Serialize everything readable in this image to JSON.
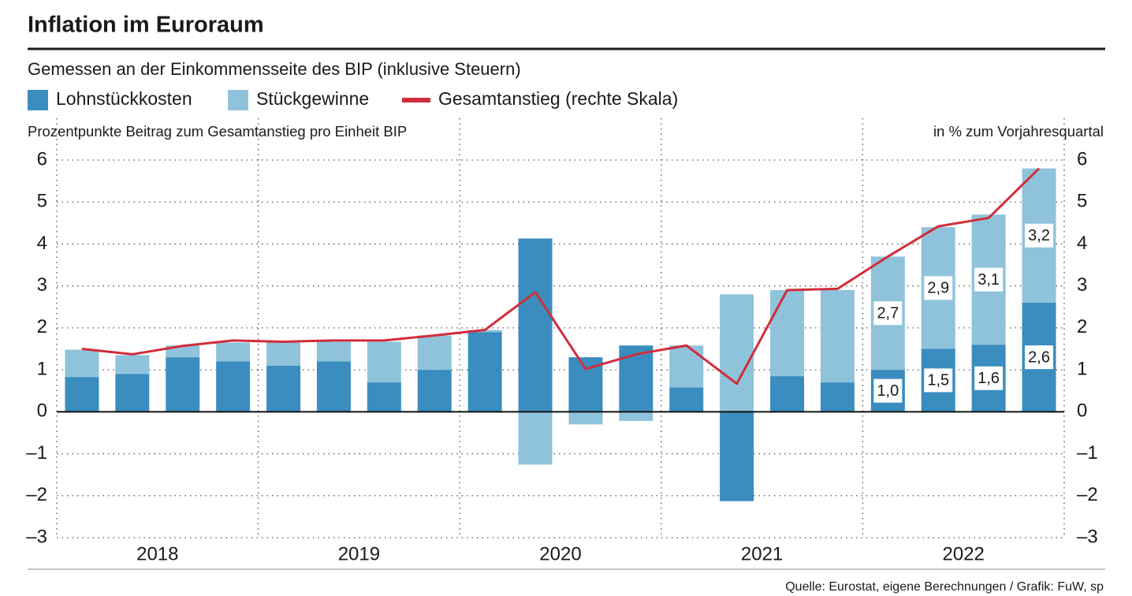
{
  "chart_data": {
    "type": "bar",
    "stacked": true,
    "title": "Inflation im Euroraum",
    "subtitle": "Gemessen an der Einkommensseite des BIP (inklusive Steuern)",
    "y_label": "Prozentpunkte Beitrag zum Gesamtanstieg pro Einheit BIP",
    "y2_label": "in % zum Vorjahresquartal",
    "source": "Quelle: Eurostat, eigene Berechnungen / Grafik: FuW, sp",
    "categories": [
      null,
      null,
      null,
      null,
      null,
      null,
      null,
      null,
      null,
      null,
      null,
      null,
      null,
      null,
      null,
      null,
      null,
      null,
      null,
      null
    ],
    "x_groups": [
      "2018",
      "2019",
      "2020",
      "2021",
      "2022"
    ],
    "series": [
      {
        "name": "Lohnstückkosten",
        "color": "#3b8dbf",
        "values": [
          0.83,
          0.9,
          1.3,
          1.2,
          1.1,
          1.2,
          0.7,
          1.0,
          1.9,
          4.13,
          1.3,
          1.58,
          0.58,
          -2.13,
          0.85,
          0.7,
          1.0,
          1.5,
          1.6,
          2.6
        ],
        "value_labels": [
          null,
          null,
          null,
          null,
          null,
          null,
          null,
          null,
          null,
          null,
          null,
          null,
          null,
          null,
          null,
          null,
          "1,0",
          "1,5",
          "1,6",
          "2,6"
        ]
      },
      {
        "name": "Stückgewinne",
        "color": "#8fc3dc",
        "values": [
          0.65,
          0.45,
          0.28,
          0.45,
          0.55,
          0.47,
          0.97,
          0.82,
          0.05,
          -1.26,
          -0.3,
          -0.22,
          1.0,
          2.8,
          2.05,
          2.2,
          2.7,
          2.9,
          3.1,
          3.2
        ],
        "value_labels": [
          null,
          null,
          null,
          null,
          null,
          null,
          null,
          null,
          null,
          null,
          null,
          null,
          null,
          null,
          null,
          null,
          "2,7",
          "2,9",
          "3,1",
          "3,2"
        ]
      },
      {
        "name": "Gesamtanstieg (rechte Skala)",
        "type": "line",
        "axis": "y2",
        "color": "#d12d3a",
        "values": [
          1.5,
          1.37,
          1.57,
          1.7,
          1.67,
          1.7,
          1.7,
          1.82,
          1.95,
          2.85,
          1.02,
          1.37,
          1.58,
          0.67,
          2.9,
          2.93,
          3.7,
          4.42,
          4.62,
          5.8
        ]
      }
    ],
    "ylim": [
      -3,
      6
    ],
    "yticks": [
      {
        "value": -3,
        "label": "–3"
      },
      {
        "value": -2,
        "label": "–2"
      },
      {
        "value": -1,
        "label": "–1"
      },
      0,
      1,
      2,
      3,
      4,
      5,
      6
    ],
    "y2lim": [
      -3,
      6
    ],
    "y2ticks": [
      {
        "value": -3,
        "label": "–3"
      },
      {
        "value": -2,
        "label": "–2"
      },
      {
        "value": -1,
        "label": "–1"
      },
      0,
      1,
      2,
      3,
      4,
      5,
      6
    ],
    "grid": true
  }
}
